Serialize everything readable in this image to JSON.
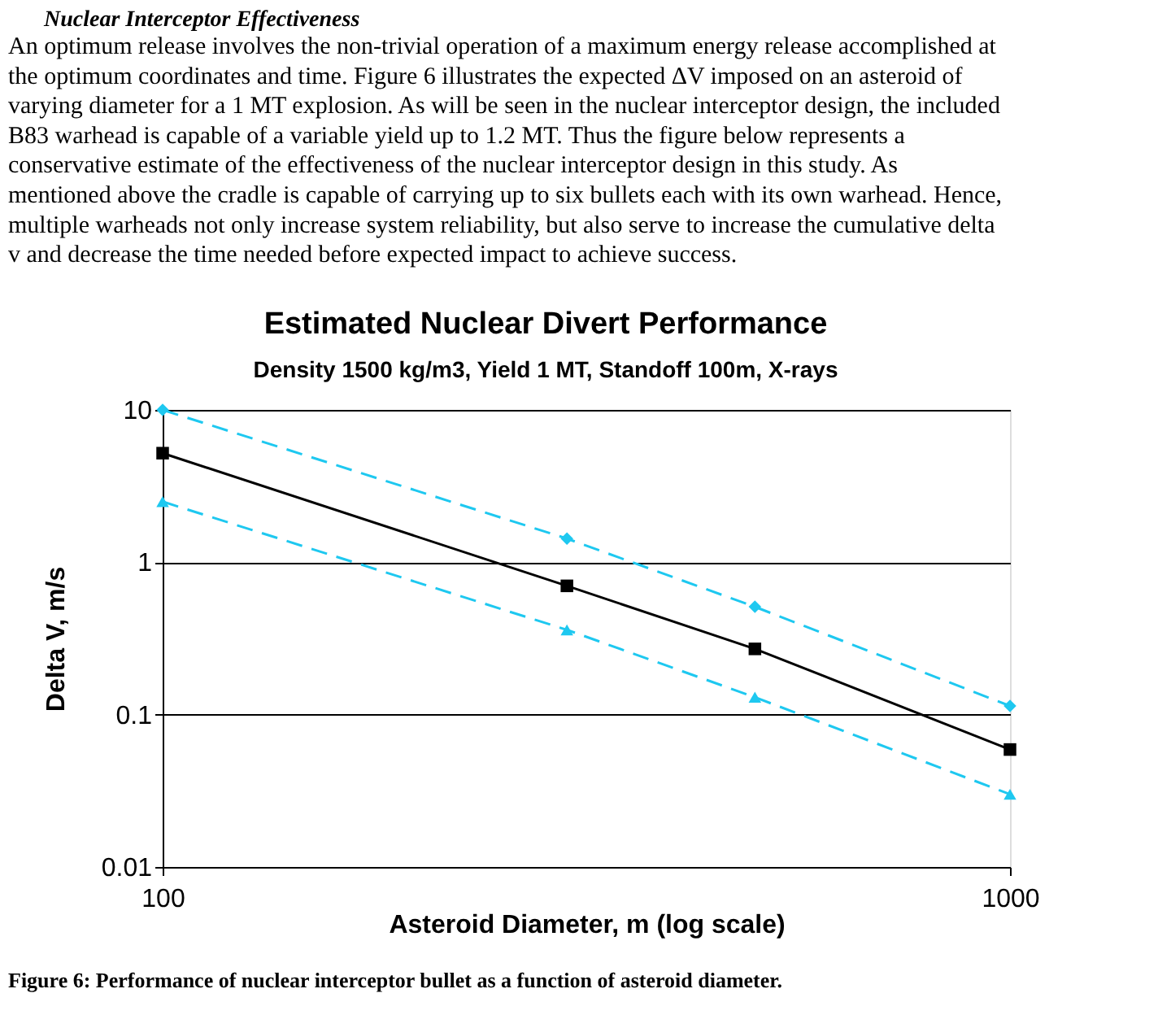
{
  "chart_data": {
    "type": "line",
    "title": "Estimated Nuclear Divert Performance",
    "subtitle": "Density 1500 kg/m3, Yield 1 MT, Standoff 100m, X-rays",
    "xlabel": "Asteroid Diameter, m (log scale)",
    "ylabel": "Delta V, m/s",
    "x": [
      100,
      300,
      500,
      1000
    ],
    "series": [
      {
        "color": "#1ec8f0",
        "values": [
          10,
          1.43,
          0.51,
          0.114
        ],
        "marker": "diamond",
        "line_style": "dashed"
      },
      {
        "color": "#000000",
        "values": [
          5.2,
          0.7,
          0.27,
          0.059
        ],
        "marker": "square",
        "line_style": "solid"
      },
      {
        "color": "#1ec8f0",
        "values": [
          2.5,
          0.36,
          0.13,
          0.03
        ],
        "marker": "triangle",
        "line_style": "dashed"
      }
    ],
    "log": "xy",
    "xlim": [
      100,
      1000
    ],
    "xticks": [
      100,
      1000
    ],
    "ylim": [
      0.01,
      10
    ],
    "yticks": [
      0.01,
      0.1,
      1,
      10
    ],
    "grid": "y",
    "annotations": [
      "Nuclear Interceptor Effectiveness",
      "An optimum release involves the non-trivial operation of a maximum energy release accomplished at the optimum coordinates and time.  Figure 6 illustrates the expected ΔV imposed on an asteroid of varying diameter for a 1 MT explosion.  As will be seen in the nuclear interceptor design, the included B83 warhead is capable of a variable yield up to 1.2 MT.  Thus the figure below represents a conservative estimate of the effectiveness of the nuclear interceptor design in this study.  As mentioned above the cradle is capable of carrying up to six bullets each with its own warhead.  Hence, multiple warheads not only increase system reliability, but also serve to increase the cumulative delta v and decrease the time needed before expected impact to achieve success.",
      "Figure 6: Performance of nuclear interceptor bullet as a function of asteroid diameter."
    ]
  }
}
